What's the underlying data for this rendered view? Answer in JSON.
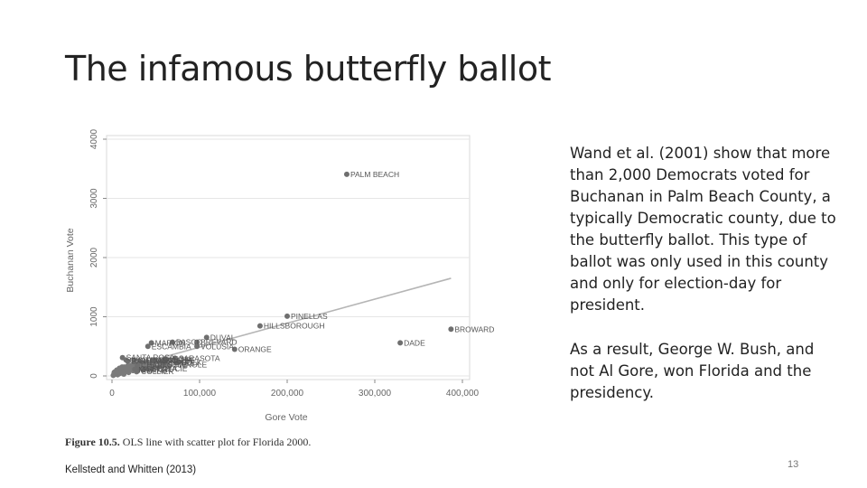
{
  "slide": {
    "title": "The infamous butterfly ballot",
    "paragraphs": [
      "Wand et al. (2001) show that more than 2,000 Democrats voted for Buchanan in Palm Beach County, a typically Democratic county, due to the butterfly ballot. This type of ballot was only used in this county and only for election-day for president.",
      "As a result, George W. Bush, and not Al Gore, won Florida and the presidency."
    ],
    "citation": "Kellstedt and Whitten (2013)",
    "page_number": "13",
    "figure_caption_label": "Figure 10.5.",
    "figure_caption_text": "OLS line with scatter plot for Florida 2000."
  },
  "chart_data": {
    "type": "scatter",
    "xlabel": "Gore Vote",
    "ylabel": "Buchanan Vote",
    "xlim": [
      0,
      400000
    ],
    "ylim": [
      0,
      4000
    ],
    "xticks": [
      0,
      100000,
      200000,
      300000,
      400000
    ],
    "xtick_labels": [
      "0",
      "100,000",
      "200,000",
      "300,000",
      "400,000"
    ],
    "yticks": [
      0,
      1000,
      2000,
      3000,
      4000
    ],
    "ytick_labels": [
      "0",
      "1000",
      "2000",
      "3000",
      "4000"
    ],
    "grid": true,
    "fit_line": {
      "x": [
        0,
        387000
      ],
      "y": [
        80,
        1650
      ]
    },
    "labeled_points": [
      {
        "label": "PALM BEACH",
        "x": 268000,
        "y": 3407
      },
      {
        "label": "PINELLAS",
        "x": 200000,
        "y": 1010
      },
      {
        "label": "HILLSBOROUGH",
        "x": 169000,
        "y": 845
      },
      {
        "label": "BROWARD",
        "x": 387000,
        "y": 790
      },
      {
        "label": "DADE",
        "x": 329000,
        "y": 560
      },
      {
        "label": "DUVAL",
        "x": 108000,
        "y": 650
      },
      {
        "label": "ORANGE",
        "x": 140000,
        "y": 450
      },
      {
        "label": "BREVARD",
        "x": 97000,
        "y": 570
      },
      {
        "label": "VOLUSIA",
        "x": 97000,
        "y": 500
      },
      {
        "label": "ESCAMBIA",
        "x": 41000,
        "y": 500
      },
      {
        "label": "MARION",
        "x": 45000,
        "y": 560
      },
      {
        "label": "SARASOTA",
        "x": 72000,
        "y": 300
      },
      {
        "label": "SEMINOLE",
        "x": 59000,
        "y": 190
      },
      {
        "label": "LEE",
        "x": 74000,
        "y": 220
      },
      {
        "label": "POLK",
        "x": 75000,
        "y": 230
      },
      {
        "label": "PASCO",
        "x": 69000,
        "y": 570
      },
      {
        "label": "MANATEE",
        "x": 49000,
        "y": 270
      },
      {
        "label": "SANTA ROSA",
        "x": 12000,
        "y": 310
      },
      {
        "label": "LEON",
        "x": 61000,
        "y": 280
      },
      {
        "label": "ALACHUA",
        "x": 47000,
        "y": 260
      },
      {
        "label": "COLLIER",
        "x": 29000,
        "y": 80
      },
      {
        "label": "LAKE",
        "x": 36000,
        "y": 100
      },
      {
        "label": "ST. LUCIE",
        "x": 41000,
        "y": 120
      },
      {
        "label": "CHARLOTTE",
        "x": 29000,
        "y": 180
      },
      {
        "label": "CITRUS",
        "x": 25000,
        "y": 270
      },
      {
        "label": "BAY",
        "x": 18000,
        "y": 250
      },
      {
        "label": "OKALOOSA",
        "x": 16000,
        "y": 270
      },
      {
        "label": "OSCEOLA",
        "x": 28000,
        "y": 120
      },
      {
        "label": "MARTIN",
        "x": 26000,
        "y": 110
      },
      {
        "label": "HERNANDO",
        "x": 32000,
        "y": 240
      }
    ],
    "small_points": [
      [
        2000,
        20
      ],
      [
        3000,
        40
      ],
      [
        4000,
        30
      ],
      [
        5000,
        60
      ],
      [
        6000,
        50
      ],
      [
        7000,
        80
      ],
      [
        8000,
        40
      ],
      [
        9000,
        100
      ],
      [
        10000,
        90
      ],
      [
        11000,
        60
      ],
      [
        12000,
        120
      ],
      [
        13000,
        70
      ],
      [
        14000,
        150
      ],
      [
        15000,
        110
      ],
      [
        16000,
        90
      ],
      [
        17000,
        130
      ],
      [
        18000,
        170
      ],
      [
        19000,
        60
      ],
      [
        20000,
        140
      ],
      [
        21000,
        100
      ],
      [
        22000,
        180
      ],
      [
        23000,
        120
      ],
      [
        24000,
        90
      ],
      [
        25000,
        160
      ],
      [
        26000,
        200
      ],
      [
        27000,
        140
      ],
      [
        28000,
        70
      ],
      [
        30000,
        190
      ],
      [
        31000,
        130
      ],
      [
        33000,
        160
      ],
      [
        34000,
        220
      ],
      [
        35000,
        110
      ],
      [
        37000,
        200
      ],
      [
        38000,
        150
      ],
      [
        40000,
        240
      ],
      [
        42000,
        180
      ],
      [
        44000,
        130
      ],
      [
        46000,
        210
      ],
      [
        48000,
        160
      ],
      [
        50000,
        230
      ],
      [
        52000,
        140
      ],
      [
        55000,
        200
      ],
      [
        57000,
        170
      ],
      [
        60000,
        250
      ],
      [
        63000,
        190
      ],
      [
        65000,
        160
      ],
      [
        3500,
        70
      ],
      [
        5500,
        100
      ],
      [
        8500,
        130
      ],
      [
        6500,
        20
      ],
      [
        9500,
        45
      ],
      [
        11500,
        150
      ],
      [
        13500,
        30
      ],
      [
        1500,
        10
      ],
      [
        2500,
        55
      ]
    ]
  }
}
